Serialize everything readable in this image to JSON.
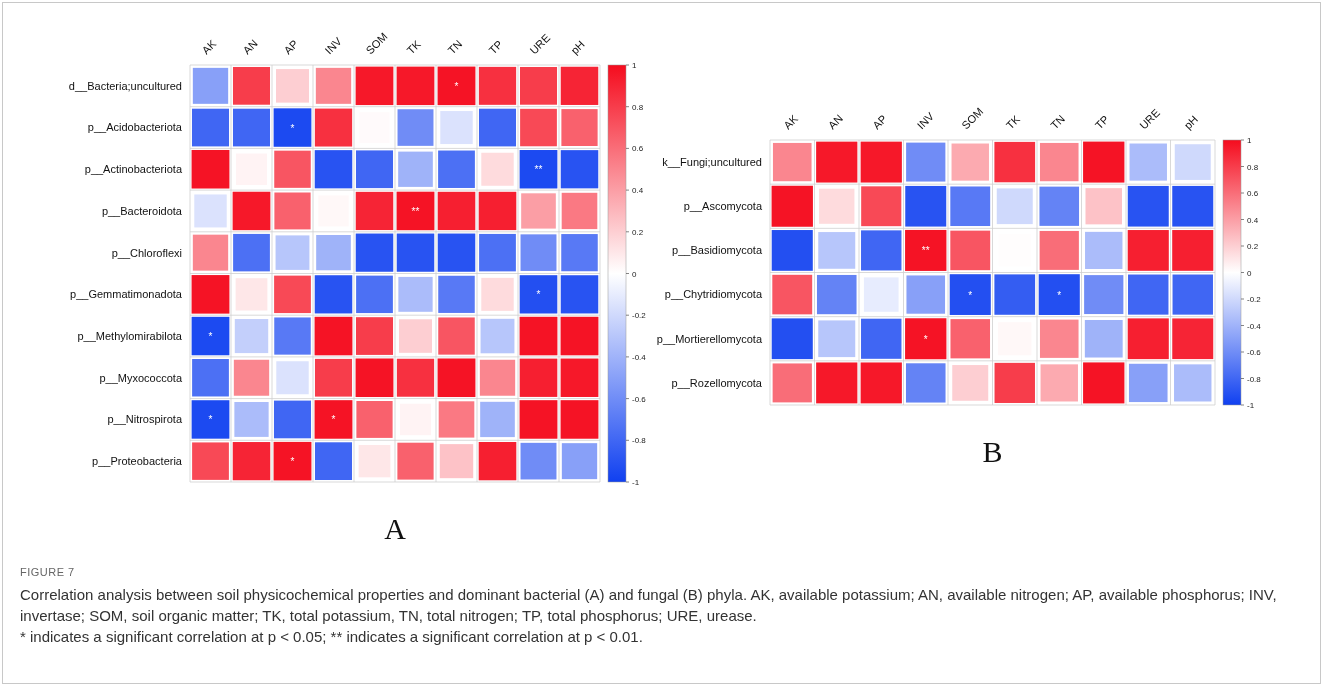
{
  "chart_data": [
    {
      "type": "heatmap",
      "annotations": [
        "A",
        "FIGURE 7",
        "Correlation analysis between soil physicochemical properties and dominant bacterial (A) and fungal (B) phyla. AK, available potassium; AN, available nitrogen; AP, available phosphorus; INV, invertase; SOM, soil organic matter; TK, total potassium, TN, total nitrogen; TP, total phosphorus; URE, urease.",
        "* indicates a significant correlation at p < 0.05; ** indicates a significant correlation at p < 0.01."
      ],
      "categories": [
        "AK",
        "AN",
        "AP",
        "INV",
        "SOM",
        "TK",
        "TN",
        "TP",
        "URE",
        "pH"
      ],
      "y_categories": [
        "d__Bacteria;uncultured",
        "p__Acidobacteriota",
        "p__Actinobacteriota",
        "p__Bacteroidota",
        "p__Chloroflexi",
        "p__Gemmatimonadota",
        "p__Methylomirabilota",
        "p__Myxococcota",
        "p__Nitrospirota",
        "p__Proteobacteria"
      ],
      "cells": [
        [
          -0.5,
          0.8,
          0.2,
          0.5,
          0.95,
          0.95,
          0.97,
          0.85,
          0.8,
          0.9
        ],
        [
          -0.8,
          -0.8,
          -0.95,
          0.85,
          0.02,
          -0.6,
          -0.15,
          -0.8,
          0.75,
          0.65
        ],
        [
          0.97,
          0.05,
          0.7,
          -0.9,
          -0.8,
          -0.4,
          -0.75,
          0.15,
          -0.95,
          -0.9
        ],
        [
          -0.15,
          0.95,
          0.65,
          0.03,
          0.9,
          0.97,
          0.92,
          0.92,
          0.4,
          0.55
        ],
        [
          0.5,
          -0.75,
          -0.3,
          -0.4,
          -0.9,
          -0.9,
          -0.9,
          -0.75,
          -0.6,
          -0.7
        ],
        [
          0.97,
          0.1,
          0.75,
          -0.9,
          -0.75,
          -0.35,
          -0.7,
          0.15,
          -0.92,
          -0.9
        ],
        [
          -0.95,
          -0.25,
          -0.7,
          0.97,
          0.8,
          0.2,
          0.7,
          -0.3,
          0.97,
          0.97
        ],
        [
          -0.75,
          0.5,
          -0.15,
          0.8,
          0.97,
          0.85,
          0.97,
          0.5,
          0.92,
          0.95
        ],
        [
          -0.95,
          -0.35,
          -0.8,
          0.97,
          0.65,
          0.05,
          0.55,
          -0.4,
          0.97,
          0.97
        ],
        [
          0.75,
          0.9,
          0.97,
          -0.8,
          0.1,
          0.65,
          0.25,
          0.92,
          -0.6,
          -0.5
        ]
      ],
      "cell_labels": [
        [
          null,
          null,
          null,
          null,
          null,
          null,
          "*",
          null,
          null,
          null
        ],
        [
          null,
          null,
          "*",
          null,
          null,
          null,
          null,
          null,
          null,
          null
        ],
        [
          null,
          null,
          null,
          null,
          null,
          null,
          null,
          null,
          "**",
          null
        ],
        [
          null,
          null,
          null,
          null,
          null,
          "**",
          null,
          null,
          null,
          null
        ],
        [
          null,
          null,
          null,
          null,
          null,
          null,
          null,
          null,
          null,
          null
        ],
        [
          null,
          null,
          null,
          null,
          null,
          null,
          null,
          null,
          "*",
          null
        ],
        [
          "*",
          null,
          null,
          null,
          null,
          null,
          null,
          null,
          null,
          null
        ],
        [
          null,
          null,
          null,
          null,
          null,
          null,
          null,
          null,
          null,
          null
        ],
        [
          "*",
          null,
          null,
          "*",
          null,
          null,
          null,
          null,
          null,
          null
        ],
        [
          null,
          null,
          "*",
          null,
          null,
          null,
          null,
          null,
          null,
          null
        ]
      ],
      "clim": [
        -1,
        1
      ],
      "cticks": [
        -1,
        -0.8,
        -0.6,
        -0.4,
        -0.2,
        0,
        0.2,
        0.4,
        0.6,
        0.8,
        1
      ],
      "grid": true
    },
    {
      "type": "heatmap",
      "annotations": [
        "B"
      ],
      "categories": [
        "AK",
        "AN",
        "AP",
        "INV",
        "SOM",
        "TK",
        "TN",
        "TP",
        "URE",
        "pH"
      ],
      "y_categories": [
        "k__Fungi;uncultured",
        "p__Ascomycota",
        "p__Basidiomycota",
        "p__Chytridiomycota",
        "p__Mortierellomycota",
        "p__Rozellomycota"
      ],
      "cells": [
        [
          0.5,
          0.95,
          0.95,
          -0.6,
          0.35,
          0.85,
          0.5,
          0.97,
          -0.35,
          -0.2
        ],
        [
          0.97,
          0.15,
          0.75,
          -0.9,
          -0.7,
          -0.2,
          -0.65,
          0.25,
          -0.9,
          -0.9
        ],
        [
          -0.92,
          -0.3,
          -0.8,
          0.97,
          0.7,
          0.01,
          0.6,
          -0.35,
          0.92,
          0.92
        ],
        [
          0.7,
          -0.65,
          -0.1,
          -0.5,
          -0.92,
          -0.85,
          -0.92,
          -0.6,
          -0.8,
          -0.8
        ],
        [
          -0.92,
          -0.3,
          -0.8,
          0.97,
          0.65,
          0.03,
          0.5,
          -0.4,
          0.92,
          0.9
        ],
        [
          0.6,
          0.95,
          0.95,
          -0.65,
          0.2,
          0.8,
          0.35,
          0.97,
          -0.5,
          -0.35
        ]
      ],
      "cell_labels": [
        [
          null,
          null,
          null,
          null,
          null,
          null,
          null,
          null,
          null,
          null
        ],
        [
          null,
          null,
          null,
          null,
          null,
          null,
          null,
          null,
          null,
          null
        ],
        [
          null,
          null,
          null,
          "**",
          null,
          null,
          null,
          null,
          null,
          null
        ],
        [
          null,
          null,
          null,
          null,
          "*",
          null,
          "*",
          null,
          null,
          null
        ],
        [
          null,
          null,
          null,
          "*",
          null,
          null,
          null,
          null,
          null,
          null
        ],
        [
          null,
          null,
          null,
          null,
          null,
          null,
          null,
          null,
          null,
          null
        ]
      ],
      "clim": [
        -1,
        1
      ],
      "cticks": [
        -1,
        -0.8,
        -0.6,
        -0.4,
        -0.2,
        0,
        0.2,
        0.4,
        0.6,
        0.8,
        1
      ],
      "grid": true
    }
  ]
}
